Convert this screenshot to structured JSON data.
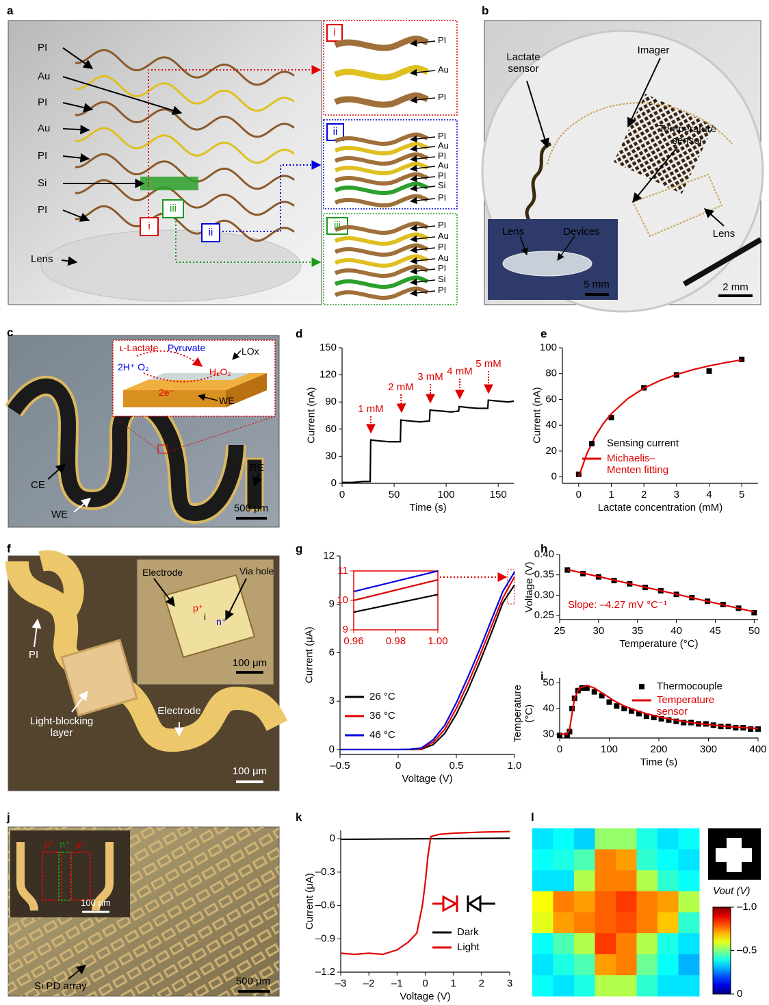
{
  "panels": {
    "a": {
      "letter": "a",
      "layers": [
        "PI",
        "Au",
        "PI",
        "Au",
        "PI",
        "Si",
        "PI"
      ],
      "base": "Lens",
      "callouts": [
        "i",
        "ii",
        "iii"
      ],
      "insets": [
        {
          "tag": "i",
          "labels": [
            "PI",
            "Au",
            "PI"
          ]
        },
        {
          "tag": "ii",
          "labels": [
            "PI",
            "Au",
            "PI",
            "Au",
            "PI",
            "Si",
            "PI"
          ]
        },
        {
          "tag": "iii",
          "labels": [
            "PI",
            "Au",
            "PI",
            "Au",
            "PI",
            "Si",
            "PI"
          ]
        }
      ]
    },
    "b": {
      "letter": "b",
      "labels": [
        "Lactate sensor",
        "Imager",
        "Temperature sensor",
        "Lens"
      ],
      "inset_labels": [
        "Lens",
        "Devices"
      ],
      "scale_bars": [
        "5 mm",
        "2 mm"
      ]
    },
    "c": {
      "letter": "c",
      "inset_labels": [
        "ʟ-Lactate",
        "Pyruvate",
        "LOx",
        "2H⁺ O₂",
        "H₂O₂",
        "2e⁻",
        "WE"
      ],
      "labels": [
        "CE",
        "WE",
        "RE"
      ],
      "scale_bar": "500 μm"
    },
    "f": {
      "letter": "f",
      "inset_labels": [
        "Electrode",
        "Via hole",
        "p⁺",
        "i",
        "n⁺"
      ],
      "inset_scale_bar": "100 μm",
      "labels": [
        "PI",
        "Light-blocking layer",
        "Electrode"
      ],
      "scale_bar": "100 μm"
    },
    "j": {
      "letter": "j",
      "inset_labels": [
        "p⁺",
        "n⁺",
        "p⁺"
      ],
      "inset_scale_bar": "100 μm",
      "labels": [
        "Si PD array"
      ],
      "scale_bar": "500 μm"
    }
  },
  "chart_data": [
    {
      "label": "d",
      "type": "line",
      "xlabel": "Time (s)",
      "ylabel": "Current (nA)",
      "xlim": [
        0,
        165
      ],
      "ylim": [
        0,
        150
      ],
      "xticks": [
        0,
        50,
        100,
        150
      ],
      "yticks": [
        0,
        30,
        60,
        90,
        120,
        150
      ],
      "annotations": [
        "1 mM",
        "2 mM",
        "3 mM",
        "4 mM",
        "5 mM"
      ],
      "annotation_color": "#e00000",
      "series": [
        {
          "color": "#000000",
          "style": "line",
          "x": [
            0,
            10,
            20,
            27,
            27.5,
            35,
            45,
            56,
            56.5,
            65,
            75,
            84,
            84.5,
            95,
            105,
            112,
            112.5,
            120,
            130,
            140,
            140.5,
            150,
            160,
            165
          ],
          "values": [
            1,
            1,
            2,
            2,
            48,
            47,
            46,
            46,
            70,
            69,
            68,
            69,
            81,
            80,
            79,
            80,
            85,
            84,
            83,
            83,
            92,
            91,
            90,
            91
          ]
        }
      ]
    },
    {
      "label": "e",
      "type": "line",
      "xlabel": "Lactate concentration (mM)",
      "ylabel": "Current (nA)",
      "xlim": [
        -0.5,
        5.5
      ],
      "ylim": [
        -5,
        100
      ],
      "xticks": [
        0,
        1,
        2,
        3,
        4,
        5
      ],
      "yticks": [
        0,
        20,
        40,
        60,
        80,
        100
      ],
      "legend_colored_text": true,
      "series": [
        {
          "name": "Sensing current",
          "color": "#000000",
          "style": "markers",
          "x": [
            0,
            1,
            2,
            3,
            4,
            5
          ],
          "values": [
            2,
            46,
            69,
            79,
            82,
            91
          ]
        },
        {
          "name": "Michaelis–Menten fitting",
          "color": "#e00000",
          "style": "line",
          "x": [
            0,
            0.25,
            0.5,
            0.75,
            1,
            1.5,
            2,
            2.5,
            3,
            3.5,
            4,
            4.5,
            5
          ],
          "values": [
            0,
            18.0,
            31.1,
            41.1,
            48.9,
            60.5,
            68.7,
            74.7,
            79.3,
            83.0,
            86.0,
            88.5,
            90.6
          ]
        }
      ]
    },
    {
      "label": "g",
      "type": "line",
      "xlabel": "Voltage (V)",
      "ylabel": "Current (μA)",
      "xlim": [
        -0.5,
        1.0
      ],
      "ylim": [
        -0.3,
        12
      ],
      "xticks": [
        {
          "value": -0.5,
          "label": "–0.5"
        },
        0,
        0.5,
        {
          "value": 1.0,
          "label": "1.0"
        }
      ],
      "yticks": [
        0,
        3,
        6,
        9,
        12
      ],
      "series": [
        {
          "name": "26 °C",
          "color": "#000000",
          "style": "line",
          "x": [
            -0.5,
            0,
            0.1,
            0.2,
            0.3,
            0.4,
            0.5,
            0.6,
            0.7,
            0.8,
            0.9,
            1.0
          ],
          "values": [
            0,
            0,
            0,
            0.02,
            0.3,
            1.0,
            2.2,
            3.7,
            5.4,
            7.2,
            9.1,
            10.2
          ]
        },
        {
          "name": "36 °C",
          "color": "#e00000",
          "style": "line",
          "x": [
            -0.5,
            0,
            0.1,
            0.2,
            0.3,
            0.4,
            0.5,
            0.6,
            0.7,
            0.8,
            0.9,
            1.0
          ],
          "values": [
            0,
            0,
            0.01,
            0.05,
            0.45,
            1.25,
            2.55,
            4.1,
            5.8,
            7.6,
            9.4,
            10.7
          ]
        },
        {
          "name": "46 °C",
          "color": "#0000e0",
          "style": "line",
          "x": [
            -0.5,
            0,
            0.1,
            0.2,
            0.3,
            0.4,
            0.5,
            0.6,
            0.7,
            0.8,
            0.9,
            1.0
          ],
          "values": [
            0,
            0,
            0.02,
            0.1,
            0.6,
            1.5,
            2.9,
            4.5,
            6.2,
            8.0,
            9.8,
            11.0
          ]
        }
      ]
    },
    {
      "type": "line",
      "xlim": [
        0.96,
        1.0
      ],
      "ylim": [
        9,
        11
      ],
      "tick_color": "#e00000",
      "xticks": [
        0.96,
        0.98,
        {
          "value": 1.0,
          "label": "1.00"
        }
      ],
      "yticks": [
        9,
        10,
        11
      ],
      "series": [
        {
          "color": "#000000",
          "style": "line",
          "x": [
            0.96,
            1.0
          ],
          "values": [
            9.6,
            10.2
          ]
        },
        {
          "color": "#e00000",
          "style": "line",
          "x": [
            0.96,
            1.0
          ],
          "values": [
            10.0,
            10.7
          ]
        },
        {
          "color": "#0000e0",
          "style": "line",
          "x": [
            0.96,
            1.0
          ],
          "values": [
            10.3,
            11.0
          ]
        }
      ]
    },
    {
      "label": "h",
      "type": "line",
      "xlabel": "Temperature (°C)",
      "ylabel": "Voltage (V)",
      "xlim": [
        25,
        50.5
      ],
      "ylim": [
        0.24,
        0.4
      ],
      "xticks": [
        25,
        30,
        35,
        40,
        45,
        50
      ],
      "yticks": [
        0.25,
        {
          "value": 0.3,
          "label": "0.30"
        },
        0.35,
        {
          "value": 0.4,
          "label": "0.40"
        }
      ],
      "annotations": [
        "Slope: –4.27 mV °C⁻¹"
      ],
      "annotation_color": "#e00000",
      "series": [
        {
          "color": "#000000",
          "style": "markers",
          "x": [
            26,
            28,
            30,
            32,
            34,
            36,
            38,
            40,
            42,
            44,
            46,
            48,
            50
          ],
          "values": [
            0.362,
            0.353,
            0.345,
            0.336,
            0.328,
            0.319,
            0.311,
            0.302,
            0.294,
            0.285,
            0.277,
            0.268,
            0.257
          ]
        },
        {
          "color": "#e00000",
          "style": "line",
          "x": [
            26,
            50
          ],
          "values": [
            0.363,
            0.259
          ]
        }
      ]
    },
    {
      "label": "i",
      "type": "line",
      "xlabel": "Time (s)",
      "ylabel": "Temperature (°C)",
      "xlim": [
        0,
        400
      ],
      "ylim": [
        28.5,
        52
      ],
      "xticks": [
        0,
        100,
        200,
        300,
        400
      ],
      "yticks": [
        30,
        40,
        50
      ],
      "legend_colored_text": true,
      "series": [
        {
          "name": "Thermocouple",
          "color": "#000000",
          "style": "markers",
          "x": [
            0,
            15,
            20,
            25,
            30,
            37,
            45,
            55,
            70,
            85,
            100,
            115,
            130,
            145,
            160,
            175,
            190,
            205,
            220,
            235,
            250,
            265,
            280,
            295,
            310,
            325,
            340,
            355,
            370,
            385,
            400
          ],
          "values": [
            29.5,
            29.5,
            31,
            40,
            44,
            47,
            48,
            48,
            46.5,
            45,
            42.5,
            41,
            40,
            39,
            38,
            37,
            36.5,
            36,
            35.5,
            35,
            34.5,
            34.5,
            34,
            34,
            33.5,
            33,
            33,
            32.5,
            32.5,
            32,
            32
          ]
        },
        {
          "name": "Temperature sensor",
          "color": "#e00000",
          "style": "line",
          "x": [
            0,
            15,
            20,
            25,
            30,
            40,
            55,
            70,
            90,
            110,
            130,
            150,
            175,
            200,
            225,
            250,
            275,
            300,
            325,
            350,
            375,
            400
          ],
          "values": [
            30,
            30,
            32,
            38,
            44,
            48,
            49,
            48,
            45.5,
            43,
            41,
            39.5,
            38,
            36.8,
            35.8,
            35,
            34.3,
            33.7,
            33.2,
            32.8,
            32.5,
            32.2
          ]
        }
      ]
    },
    {
      "label": "k",
      "type": "line",
      "xlabel": "Voltage (V)",
      "ylabel": "Current (μA)",
      "xlim": [
        -3,
        3
      ],
      "ylim": [
        -1.2,
        0.075
      ],
      "xticks": [
        {
          "value": -3,
          "label": "–3"
        },
        {
          "value": -2,
          "label": "–2"
        },
        {
          "value": -1,
          "label": "–1"
        },
        0,
        1,
        2,
        3
      ],
      "yticks": [
        {
          "value": -1.2,
          "label": "–1.2"
        },
        {
          "value": -0.9,
          "label": "–0.9"
        },
        {
          "value": -0.6,
          "label": "–0.6"
        },
        {
          "value": -0.3,
          "label": "–0.3"
        },
        0
      ],
      "series": [
        {
          "name": "Dark",
          "color": "#000000",
          "style": "line",
          "x": [
            -3,
            3
          ],
          "values": [
            -0.005,
            0.005
          ]
        },
        {
          "name": "Light",
          "color": "#e00000",
          "style": "line",
          "x": [
            -3,
            -2.5,
            -2,
            -1.5,
            -1,
            -0.6,
            -0.3,
            -0.1,
            0,
            0.1,
            0.2,
            0.5,
            1,
            2,
            3
          ],
          "values": [
            -1.03,
            -1.04,
            -1.03,
            -1.04,
            -1.0,
            -0.93,
            -0.85,
            -0.6,
            -0.4,
            -0.15,
            0.02,
            0.04,
            0.05,
            0.06,
            0.065
          ]
        }
      ]
    },
    {
      "label": "l",
      "type": "heatmap",
      "clim": [
        -1.0,
        0
      ],
      "colorbar_label": "Vout (V)",
      "cticks": [
        {
          "value": -1.0,
          "label": "–1.0"
        },
        {
          "value": -0.5,
          "label": "–0.5"
        },
        0
      ],
      "z": [
        [
          -0.35,
          -0.38,
          -0.33,
          -0.52,
          -0.52,
          -0.4,
          -0.35,
          -0.38
        ],
        [
          -0.38,
          -0.4,
          -0.45,
          -0.75,
          -0.72,
          -0.42,
          -0.38,
          -0.35
        ],
        [
          -0.35,
          -0.35,
          -0.55,
          -0.75,
          -0.75,
          -0.55,
          -0.42,
          -0.38
        ],
        [
          -0.62,
          -0.75,
          -0.72,
          -0.78,
          -0.82,
          -0.75,
          -0.72,
          -0.55
        ],
        [
          -0.6,
          -0.72,
          -0.75,
          -0.78,
          -0.8,
          -0.75,
          -0.68,
          -0.42
        ],
        [
          -0.38,
          -0.45,
          -0.55,
          -0.82,
          -0.75,
          -0.55,
          -0.4,
          -0.35
        ],
        [
          -0.35,
          -0.4,
          -0.45,
          -0.72,
          -0.75,
          -0.48,
          -0.38,
          -0.3
        ],
        [
          -0.38,
          -0.35,
          -0.4,
          -0.55,
          -0.55,
          -0.42,
          -0.35,
          -0.35
        ]
      ]
    }
  ]
}
